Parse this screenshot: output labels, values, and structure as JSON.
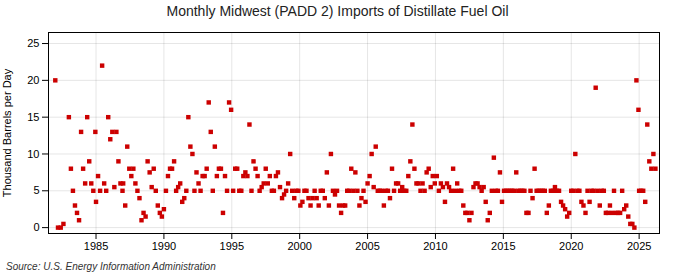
{
  "chart_data": {
    "type": "scatter",
    "title": "Monthly Midwest (PADD 2) Imports of Distillate Fuel Oil",
    "ylabel": "Thousand Barrels per Day",
    "source": "Source: U.S. Energy Information Administration",
    "color": "#cc0000",
    "marker": "square",
    "grid": true,
    "xlim": [
      1981.5,
      2026.5
    ],
    "ylim": [
      -0.8,
      26.5
    ],
    "xticks": [
      1985,
      1990,
      1995,
      2000,
      2005,
      2010,
      2015,
      2020,
      2025
    ],
    "yticks": [
      0,
      5,
      10,
      15,
      20,
      25
    ],
    "x": [
      1982.0,
      1982.2,
      1982.4,
      1982.6,
      1983.0,
      1983.15,
      1983.3,
      1983.45,
      1983.6,
      1983.75,
      1983.9,
      1984.05,
      1984.2,
      1984.35,
      1984.5,
      1984.65,
      1984.8,
      1984.95,
      1985.0,
      1985.15,
      1985.3,
      1985.45,
      1985.6,
      1985.75,
      1985.9,
      1986.05,
      1986.2,
      1986.35,
      1986.5,
      1986.65,
      1986.8,
      1986.95,
      1987.0,
      1987.15,
      1987.3,
      1987.45,
      1987.6,
      1987.75,
      1987.9,
      1988.05,
      1988.2,
      1988.35,
      1988.5,
      1988.65,
      1988.8,
      1988.95,
      1989.1,
      1989.25,
      1989.4,
      1989.55,
      1989.7,
      1989.85,
      1990.0,
      1990.15,
      1990.3,
      1990.45,
      1990.6,
      1990.75,
      1990.9,
      1991.05,
      1991.2,
      1991.35,
      1991.5,
      1991.65,
      1991.8,
      1991.95,
      1992.1,
      1992.25,
      1992.4,
      1992.55,
      1992.7,
      1992.85,
      1993.0,
      1993.15,
      1993.3,
      1993.45,
      1993.6,
      1993.75,
      1993.9,
      1994.05,
      1994.2,
      1994.35,
      1994.5,
      1994.65,
      1994.8,
      1994.95,
      1995.1,
      1995.25,
      1995.4,
      1995.55,
      1995.7,
      1995.85,
      1996.0,
      1996.15,
      1996.3,
      1996.45,
      1996.6,
      1996.75,
      1996.9,
      1997.05,
      1997.2,
      1997.35,
      1997.5,
      1997.65,
      1997.8,
      1997.95,
      1998.1,
      1998.25,
      1998.4,
      1998.55,
      1998.7,
      1998.85,
      1999.0,
      1999.15,
      1999.3,
      1999.45,
      1999.6,
      1999.75,
      1999.9,
      2000.05,
      2000.2,
      2000.35,
      2000.5,
      2000.65,
      2000.8,
      2000.95,
      2001.1,
      2001.25,
      2001.4,
      2001.55,
      2001.7,
      2001.85,
      2002.0,
      2002.15,
      2002.3,
      2002.45,
      2002.6,
      2002.75,
      2002.9,
      2003.05,
      2003.2,
      2003.35,
      2003.5,
      2003.65,
      2003.8,
      2003.95,
      2004.1,
      2004.25,
      2004.4,
      2004.55,
      2004.7,
      2004.85,
      2005.0,
      2005.15,
      2005.3,
      2005.45,
      2005.6,
      2005.75,
      2005.9,
      2006.05,
      2006.2,
      2006.35,
      2006.5,
      2006.65,
      2006.8,
      2006.95,
      2007.1,
      2007.25,
      2007.4,
      2007.55,
      2007.7,
      2007.85,
      2008.0,
      2008.15,
      2008.3,
      2008.45,
      2008.6,
      2008.75,
      2008.9,
      2009.05,
      2009.2,
      2009.35,
      2009.5,
      2009.65,
      2009.8,
      2009.95,
      2010.1,
      2010.25,
      2010.4,
      2010.55,
      2010.7,
      2010.85,
      2011.0,
      2011.15,
      2011.3,
      2011.45,
      2011.6,
      2011.75,
      2011.9,
      2012.05,
      2012.2,
      2012.35,
      2012.5,
      2012.65,
      2012.8,
      2012.95,
      2013.1,
      2013.25,
      2013.4,
      2013.55,
      2013.7,
      2013.85,
      2014.0,
      2014.15,
      2014.3,
      2014.45,
      2014.6,
      2014.75,
      2014.9,
      2015.05,
      2015.2,
      2015.35,
      2015.5,
      2015.65,
      2015.8,
      2015.95,
      2016.1,
      2016.25,
      2016.4,
      2016.55,
      2016.7,
      2016.85,
      2017.0,
      2017.15,
      2017.3,
      2017.45,
      2017.6,
      2017.75,
      2017.9,
      2018.05,
      2018.2,
      2018.35,
      2018.5,
      2018.65,
      2018.8,
      2018.95,
      2019.1,
      2019.25,
      2019.4,
      2019.55,
      2019.7,
      2019.85,
      2020.0,
      2020.15,
      2020.3,
      2020.45,
      2020.6,
      2020.75,
      2020.9,
      2021.05,
      2021.2,
      2021.35,
      2021.5,
      2021.65,
      2021.8,
      2021.95,
      2022.1,
      2022.25,
      2022.4,
      2022.55,
      2022.7,
      2022.85,
      2023.0,
      2023.15,
      2023.3,
      2023.45,
      2023.6,
      2023.75,
      2023.9,
      2024.05,
      2024.2,
      2024.35,
      2024.5,
      2024.65,
      2024.8,
      2024.95,
      2025.0,
      2025.15,
      2025.3,
      2025.45,
      2025.6,
      2025.75,
      2025.9,
      2026.05,
      2026.2
    ],
    "values": [
      20.0,
      0.0,
      0.0,
      0.5,
      15.0,
      8.0,
      5.0,
      3.0,
      2.0,
      1.0,
      13.0,
      8.0,
      6.0,
      15.0,
      9.0,
      6.0,
      5.0,
      13.0,
      3.5,
      7.0,
      5.0,
      22.0,
      6.0,
      5.0,
      15.0,
      12.0,
      13.0,
      5.5,
      13.0,
      9.0,
      6.0,
      5.0,
      6.0,
      3.0,
      11.0,
      8.0,
      7.0,
      8.0,
      6.0,
      5.0,
      4.0,
      1.0,
      2.0,
      1.5,
      9.0,
      7.5,
      5.5,
      8.0,
      5.0,
      3.0,
      2.0,
      1.5,
      2.5,
      5.0,
      7.0,
      8.0,
      8.0,
      9.0,
      5.0,
      5.5,
      6.0,
      3.5,
      4.0,
      5.0,
      15.0,
      11.0,
      10.0,
      5.0,
      7.5,
      6.0,
      5.0,
      7.0,
      7.0,
      8.0,
      17.0,
      13.0,
      5.0,
      11.0,
      7.0,
      8.0,
      8.0,
      2.0,
      7.0,
      5.0,
      17.0,
      16.0,
      5.0,
      8.0,
      8.0,
      5.0,
      5.0,
      7.0,
      7.5,
      7.0,
      14.0,
      5.0,
      9.0,
      8.0,
      7.0,
      5.0,
      5.5,
      6.0,
      8.0,
      6.0,
      7.0,
      5.0,
      5.0,
      7.0,
      7.5,
      5.5,
      4.0,
      4.5,
      5.0,
      6.0,
      10.0,
      5.0,
      4.0,
      5.0,
      5.0,
      3.0,
      3.5,
      5.0,
      5.0,
      4.0,
      3.0,
      4.0,
      5.0,
      4.0,
      3.0,
      5.0,
      5.0,
      4.0,
      7.5,
      3.0,
      10.0,
      5.0,
      4.5,
      5.0,
      3.0,
      2.0,
      3.0,
      3.0,
      5.0,
      5.0,
      8.0,
      5.0,
      7.5,
      5.0,
      3.0,
      4.0,
      5.0,
      3.5,
      6.0,
      7.0,
      10.0,
      5.5,
      11.0,
      5.0,
      5.0,
      5.0,
      3.0,
      5.0,
      5.0,
      4.0,
      8.0,
      5.0,
      6.0,
      6.0,
      5.0,
      5.5,
      5.0,
      5.0,
      7.0,
      9.0,
      14.0,
      8.0,
      6.0,
      6.0,
      5.0,
      6.0,
      5.0,
      7.5,
      8.0,
      5.5,
      7.0,
      6.0,
      7.0,
      5.0,
      6.0,
      5.5,
      3.5,
      6.0,
      5.5,
      5.0,
      8.0,
      5.0,
      6.0,
      5.0,
      5.0,
      3.0,
      2.0,
      2.0,
      1.0,
      2.0,
      5.5,
      6.0,
      6.0,
      5.5,
      5.0,
      5.5,
      3.5,
      1.0,
      2.0,
      5.0,
      9.5,
      5.0,
      5.0,
      7.5,
      3.5,
      5.0,
      5.0,
      5.0,
      5.0,
      5.0,
      5.0,
      7.5,
      5.0,
      5.0,
      5.0,
      5.0,
      2.0,
      2.0,
      5.0,
      4.0,
      8.0,
      5.0,
      5.0,
      5.0,
      5.0,
      5.0,
      2.0,
      3.0,
      5.0,
      5.0,
      5.5,
      5.0,
      5.0,
      3.5,
      3.0,
      2.5,
      1.5,
      2.0,
      5.0,
      5.0,
      10.0,
      5.0,
      5.0,
      3.5,
      3.0,
      2.0,
      5.0,
      3.5,
      5.0,
      5.0,
      19.0,
      5.0,
      3.0,
      5.0,
      5.0,
      2.0,
      2.0,
      3.0,
      2.0,
      5.0,
      2.0,
      2.0,
      2.0,
      5.0,
      2.5,
      3.0,
      1.5,
      0.5,
      0.5,
      0.0,
      20.0,
      16.0,
      5.0,
      5.0,
      5.0,
      3.5,
      14.0,
      9.0,
      8.0,
      10.0,
      8.0
    ]
  }
}
